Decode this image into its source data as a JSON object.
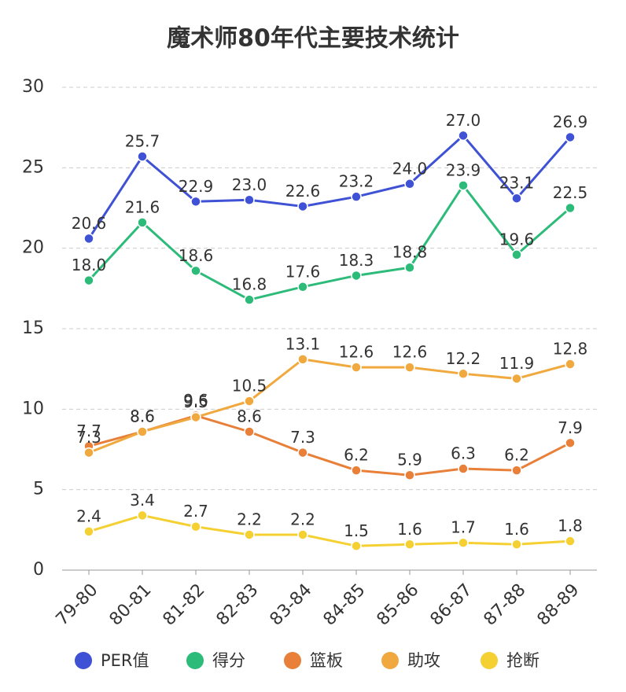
{
  "chart_data": {
    "type": "line",
    "title": "魔术师80年代主要技术统计",
    "categories": [
      "79-80",
      "80-81",
      "81-82",
      "82-83",
      "83-84",
      "84-85",
      "85-86",
      "86-87",
      "87-88",
      "88-89"
    ],
    "ylim": [
      0,
      30
    ],
    "yticks": [
      0,
      5,
      10,
      15,
      20,
      25,
      30
    ],
    "grid": true,
    "legend": "bottom",
    "series": [
      {
        "name": "PER值",
        "color": "#3f51d4",
        "values": [
          20.6,
          25.7,
          22.9,
          23.0,
          22.6,
          23.2,
          24.0,
          27.0,
          23.1,
          26.9
        ],
        "value_labels": [
          "20.6",
          "25.7",
          "22.9",
          "23.0",
          "22.6",
          "23.2",
          "24.0",
          "27.0",
          "23.1",
          "26.9"
        ]
      },
      {
        "name": "得分",
        "color": "#2dbb7a",
        "values": [
          18.0,
          21.6,
          18.6,
          16.8,
          17.6,
          18.3,
          18.8,
          23.9,
          19.6,
          22.5
        ],
        "value_labels": [
          "18.0",
          "21.6",
          "18.6",
          "16.8",
          "17.6",
          "18.3",
          "18.8",
          "23.9",
          "19.6",
          "22.5"
        ]
      },
      {
        "name": "篮板",
        "color": "#e8803a",
        "values": [
          7.7,
          8.6,
          9.6,
          8.6,
          7.3,
          6.2,
          5.9,
          6.3,
          6.2,
          7.9
        ],
        "value_labels": [
          "7.7",
          "8.6",
          "9.6",
          "8.6",
          "7.3",
          "6.2",
          "5.9",
          "6.3",
          "6.2",
          "7.9"
        ]
      },
      {
        "name": "助攻",
        "color": "#f0a93f",
        "values": [
          7.3,
          8.6,
          9.5,
          10.5,
          13.1,
          12.6,
          12.6,
          12.2,
          11.9,
          12.8
        ],
        "value_labels": [
          "7.3",
          "8.6",
          "9.5",
          "10.5",
          "13.1",
          "12.6",
          "12.6",
          "12.2",
          "11.9",
          "12.8"
        ]
      },
      {
        "name": "抢断",
        "color": "#f5d033",
        "values": [
          2.4,
          3.4,
          2.7,
          2.2,
          2.2,
          1.5,
          1.6,
          1.7,
          1.6,
          1.8
        ],
        "value_labels": [
          "2.4",
          "3.4",
          "2.7",
          "2.2",
          "2.2",
          "1.5",
          "1.6",
          "1.7",
          "1.6",
          "1.8"
        ]
      }
    ]
  }
}
